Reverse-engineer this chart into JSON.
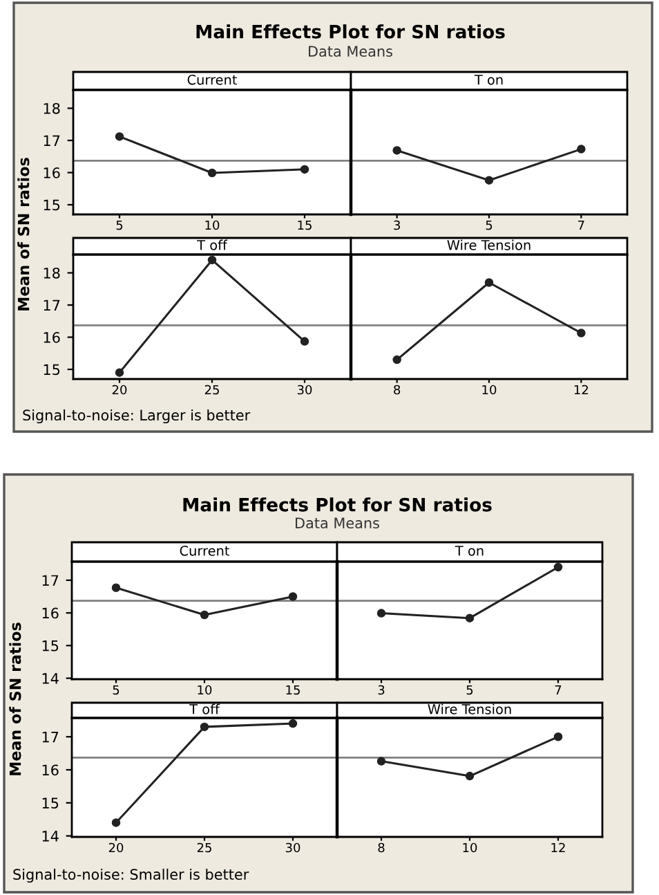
{
  "chart_data": [
    {
      "type": "other",
      "title": "Main Effects Plot for SN ratios",
      "subtitle": "Data Means",
      "ylabel": "Mean of SN ratios",
      "annotations": [
        "Signal-to-noise: Larger is better"
      ]
    },
    {
      "type": "line",
      "title": "Current",
      "categories": [
        "5",
        "10",
        "15"
      ],
      "series": [
        {
          "color": "#222222",
          "values": [
            17.12,
            15.99,
            16.1
          ]
        }
      ],
      "ylim": [
        14.7,
        18.57
      ],
      "yticks": [
        15,
        16,
        17,
        18
      ],
      "ref_lines": [
        {
          "axis": "y",
          "value": 16.37,
          "color": "#808080"
        }
      ],
      "marker": "circle",
      "line_style": "solid",
      "grid": false,
      "legend": false
    },
    {
      "type": "line",
      "title": "T on",
      "categories": [
        "3",
        "5",
        "7"
      ],
      "series": [
        {
          "color": "#222222",
          "values": [
            16.69,
            15.76,
            16.73
          ]
        }
      ],
      "ylim": [
        14.7,
        18.57
      ],
      "yticks": [
        15,
        16,
        17,
        18
      ],
      "ref_lines": [
        {
          "axis": "y",
          "value": 16.37,
          "color": "#808080"
        }
      ],
      "marker": "circle",
      "line_style": "solid",
      "grid": false,
      "legend": false,
      "tick_labels": "x"
    },
    {
      "type": "line",
      "title": "T off",
      "categories": [
        "20",
        "25",
        "30"
      ],
      "series": [
        {
          "color": "#222222",
          "values": [
            14.9,
            18.4,
            15.87
          ]
        }
      ],
      "ylim": [
        14.7,
        18.57
      ],
      "yticks": [
        15,
        16,
        17,
        18
      ],
      "ref_lines": [
        {
          "axis": "y",
          "value": 16.37,
          "color": "#808080"
        }
      ],
      "marker": "circle",
      "line_style": "solid",
      "grid": false,
      "legend": false
    },
    {
      "type": "line",
      "title": "Wire Tension",
      "categories": [
        "8",
        "10",
        "12"
      ],
      "series": [
        {
          "color": "#222222",
          "values": [
            15.3,
            17.7,
            16.13
          ]
        }
      ],
      "ylim": [
        14.7,
        18.57
      ],
      "yticks": [
        15,
        16,
        17,
        18
      ],
      "ref_lines": [
        {
          "axis": "y",
          "value": 16.37,
          "color": "#808080"
        }
      ],
      "marker": "circle",
      "line_style": "solid",
      "grid": false,
      "legend": false,
      "tick_labels": "x"
    },
    {
      "type": "other",
      "title": "Main Effects Plot for SN ratios",
      "subtitle": "Data Means",
      "ylabel": "Mean of SN ratios",
      "annotations": [
        "Signal-to-noise: Smaller is better"
      ]
    },
    {
      "type": "line",
      "title": "Current",
      "categories": [
        "5",
        "10",
        "15"
      ],
      "series": [
        {
          "color": "#222222",
          "values": [
            16.77,
            15.94,
            16.5
          ]
        }
      ],
      "ylim": [
        13.97,
        17.57
      ],
      "yticks": [
        14,
        15,
        16,
        17
      ],
      "ref_lines": [
        {
          "axis": "y",
          "value": 16.37,
          "color": "#808080"
        }
      ],
      "marker": "circle",
      "line_style": "solid",
      "grid": false,
      "legend": false
    },
    {
      "type": "line",
      "title": "T on",
      "categories": [
        "3",
        "5",
        "7"
      ],
      "series": [
        {
          "color": "#222222",
          "values": [
            15.99,
            15.84,
            17.4
          ]
        }
      ],
      "ylim": [
        13.97,
        17.57
      ],
      "yticks": [
        14,
        15,
        16,
        17
      ],
      "ref_lines": [
        {
          "axis": "y",
          "value": 16.37,
          "color": "#808080"
        }
      ],
      "marker": "circle",
      "line_style": "solid",
      "grid": false,
      "legend": false,
      "tick_labels": "x"
    },
    {
      "type": "line",
      "title": "T off",
      "categories": [
        "20",
        "25",
        "30"
      ],
      "series": [
        {
          "color": "#222222",
          "values": [
            14.4,
            17.3,
            17.4
          ]
        }
      ],
      "ylim": [
        13.97,
        17.57
      ],
      "yticks": [
        14,
        15,
        16,
        17
      ],
      "ref_lines": [
        {
          "axis": "y",
          "value": 16.37,
          "color": "#808080"
        }
      ],
      "marker": "circle",
      "line_style": "solid",
      "grid": false,
      "legend": false
    },
    {
      "type": "line",
      "title": "Wire Tension",
      "categories": [
        "8",
        "10",
        "12"
      ],
      "series": [
        {
          "color": "#222222",
          "values": [
            16.26,
            15.81,
            17.0
          ]
        }
      ],
      "ylim": [
        13.97,
        17.57
      ],
      "yticks": [
        14,
        15,
        16,
        17
      ],
      "ref_lines": [
        {
          "axis": "y",
          "value": 16.37,
          "color": "#808080"
        }
      ],
      "marker": "circle",
      "line_style": "solid",
      "grid": false,
      "legend": false,
      "tick_labels": "x"
    }
  ]
}
